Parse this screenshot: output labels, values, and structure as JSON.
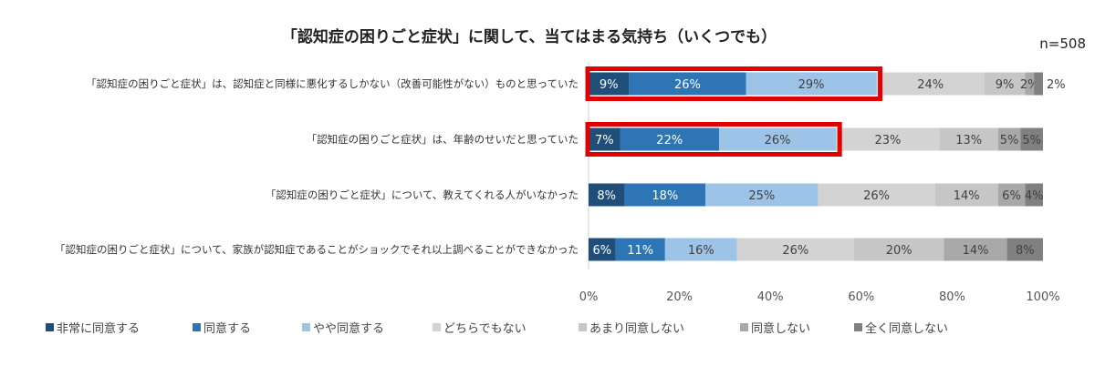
{
  "chart_data": {
    "type": "bar",
    "orientation": "horizontal",
    "stacked": true,
    "title": "「認知症の困りごと症状」に関して、当てはまる気持ち（いくつでも）",
    "sample_size": "n=508",
    "xlim": [
      0,
      100
    ],
    "xticks": [
      "0%",
      "20%",
      "40%",
      "60%",
      "80%",
      "100%"
    ],
    "grid": false,
    "legend_position": "bottom",
    "categories": [
      "「認知症の困りごと症状」は、認知症と同様に悪化するしかない（改善可能性がない）ものと思っていた",
      "「認知症の困りごと症状」は、年齢のせいだと思っていた",
      "「認知症の困りごと症状」について、教えてくれる人がいなかった",
      "「認知症の困りごと症状」について、家族が認知症であることがショックでそれ以上調べることができなかった"
    ],
    "series": [
      {
        "name": "非常に同意する",
        "color": "#1f4e79",
        "values": [
          9,
          7,
          8,
          6
        ]
      },
      {
        "name": "同意する",
        "color": "#2e75b6",
        "values": [
          26,
          22,
          18,
          11
        ]
      },
      {
        "name": "やや同意する",
        "color": "#9dc3e6",
        "values": [
          29,
          26,
          25,
          16
        ]
      },
      {
        "name": "どちらでもない",
        "color": "#d3d3d3",
        "values": [
          24,
          23,
          26,
          26
        ]
      },
      {
        "name": "あまり同意しない",
        "color": "#c6c6c6",
        "values": [
          9,
          13,
          14,
          20
        ]
      },
      {
        "name": "同意しない",
        "color": "#a8a8a8",
        "values": [
          2,
          5,
          6,
          14
        ]
      },
      {
        "name": "全く同意しない",
        "color": "#808080",
        "values": [
          2,
          5,
          4,
          8
        ]
      }
    ],
    "highlight": {
      "color": "#e00000",
      "rows": [
        0,
        1
      ],
      "series_span": [
        0,
        2
      ]
    }
  }
}
